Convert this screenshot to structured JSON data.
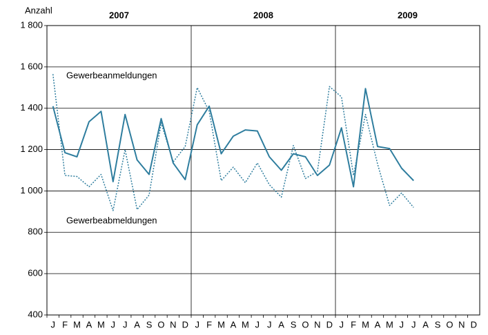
{
  "chart_data": {
    "type": "line",
    "y_label": "Anzahl",
    "year_labels": [
      "2007",
      "2008",
      "2009"
    ],
    "categories": [
      "J",
      "F",
      "M",
      "A",
      "M",
      "J",
      "J",
      "A",
      "S",
      "O",
      "N",
      "D",
      "J",
      "F",
      "M",
      "A",
      "M",
      "J",
      "J",
      "A",
      "S",
      "O",
      "N",
      "D",
      "J",
      "F",
      "M",
      "A",
      "M",
      "J",
      "J",
      "A",
      "S",
      "O",
      "N",
      "D"
    ],
    "series": [
      {
        "name": "Gewerbeanmeldungen",
        "color": "#2e7d9e",
        "style": "solid",
        "values": [
          1410,
          1185,
          1165,
          1335,
          1385,
          1045,
          1370,
          1150,
          1080,
          1350,
          1135,
          1055,
          1320,
          1410,
          1180,
          1265,
          1295,
          1290,
          1165,
          1100,
          1180,
          1165,
          1075,
          1125,
          1305,
          1020,
          1495,
          1215,
          1205,
          1110,
          1050,
          null,
          null,
          null,
          null,
          null
        ]
      },
      {
        "name": "Gewerbeabmeldungen",
        "color": "#2e7d9e",
        "style": "dotted",
        "values": [
          1565,
          1075,
          1070,
          1020,
          1080,
          905,
          1200,
          910,
          980,
          1330,
          1140,
          1215,
          1500,
          1385,
          1050,
          1115,
          1040,
          1135,
          1030,
          970,
          1220,
          1060,
          1095,
          1505,
          1455,
          1075,
          1370,
          1130,
          930,
          990,
          920,
          null,
          null,
          null,
          null,
          null
        ]
      }
    ],
    "ylim": [
      400,
      1800
    ],
    "yticks": [
      400,
      600,
      800,
      {
        "value": 1000,
        "label": "1 000"
      },
      {
        "value": 1200,
        "label": "1 200"
      },
      {
        "value": 1400,
        "label": "1 400"
      },
      {
        "value": 1600,
        "label": "1 600"
      },
      {
        "value": 1800,
        "label": "1 800"
      }
    ],
    "grid": true
  }
}
